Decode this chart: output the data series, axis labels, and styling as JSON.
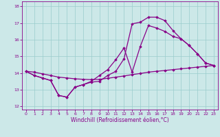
{
  "xlabel": "Windchill (Refroidissement éolien,°C)",
  "bg_color": "#cce8e8",
  "line_color": "#880088",
  "grid_color": "#99cccc",
  "xlim": [
    -0.5,
    23.5
  ],
  "ylim": [
    11.8,
    18.3
  ],
  "xticks": [
    0,
    1,
    2,
    3,
    4,
    5,
    6,
    7,
    8,
    9,
    10,
    11,
    12,
    13,
    14,
    15,
    16,
    17,
    18,
    19,
    20,
    21,
    22,
    23
  ],
  "yticks": [
    12,
    13,
    14,
    15,
    16,
    17,
    18
  ],
  "line1_x": [
    0,
    1,
    2,
    3,
    4,
    5,
    6,
    7,
    8,
    9,
    10,
    11,
    12,
    13,
    14,
    15,
    16,
    17,
    18,
    19,
    20,
    21,
    22,
    23
  ],
  "line1_y": [
    14.1,
    13.85,
    13.7,
    13.55,
    12.65,
    12.55,
    13.15,
    13.3,
    13.45,
    13.5,
    13.85,
    14.1,
    14.85,
    16.95,
    17.05,
    17.35,
    17.35,
    17.15,
    16.55,
    16.05,
    15.65,
    15.15,
    14.6,
    14.45
  ],
  "line2_x": [
    0,
    1,
    2,
    3,
    4,
    5,
    6,
    7,
    8,
    9,
    10,
    11,
    12,
    13,
    14,
    15,
    16,
    17,
    18,
    19,
    20,
    21,
    22,
    23
  ],
  "line2_y": [
    14.1,
    13.85,
    13.7,
    13.55,
    12.65,
    12.55,
    13.15,
    13.3,
    13.5,
    13.85,
    14.2,
    14.8,
    15.5,
    14.05,
    15.6,
    16.85,
    16.7,
    16.5,
    16.2,
    16.05,
    15.65,
    15.15,
    14.6,
    14.45
  ],
  "line3_x": [
    0,
    1,
    2,
    3,
    4,
    5,
    6,
    7,
    8,
    9,
    10,
    11,
    12,
    13,
    14,
    15,
    16,
    17,
    18,
    19,
    20,
    21,
    22,
    23
  ],
  "line3_y": [
    14.1,
    14.05,
    13.95,
    13.85,
    13.75,
    13.7,
    13.65,
    13.62,
    13.6,
    13.62,
    13.68,
    13.75,
    13.82,
    13.9,
    13.97,
    14.05,
    14.1,
    14.15,
    14.2,
    14.25,
    14.3,
    14.35,
    14.4,
    14.45
  ],
  "marker": "D",
  "marker_size": 1.8,
  "linewidth": 0.9,
  "tick_fontsize": 4.5,
  "xlabel_fontsize": 5.5
}
